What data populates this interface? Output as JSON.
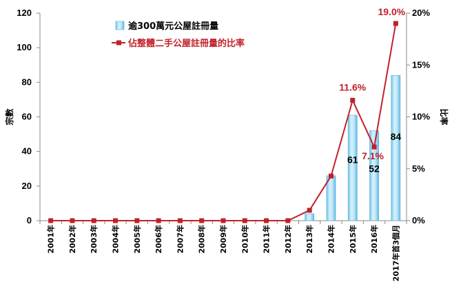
{
  "chart_data": {
    "type": "bar",
    "categories": [
      "2001年",
      "2002年",
      "2003年",
      "2004年",
      "2005年",
      "2006年",
      "2007年",
      "2008年",
      "2009年",
      "2010年",
      "2011年",
      "2012年",
      "2013年",
      "2014年",
      "2015年",
      "2016年",
      "2017年首3個月"
    ],
    "series": [
      {
        "name": "逾300萬元公屋註冊量",
        "type": "bar",
        "axis": "left",
        "values": [
          0,
          0,
          0,
          0,
          0,
          0,
          0,
          0,
          0,
          0,
          0,
          0,
          4,
          26,
          61,
          52,
          84
        ],
        "color": "#8fd3f0",
        "data_labels": {
          "14": "61",
          "15": "52",
          "16": "84"
        }
      },
      {
        "name": "佔整體二手公屋註冊量的比率",
        "type": "line",
        "axis": "right",
        "values": [
          0,
          0,
          0,
          0,
          0,
          0,
          0,
          0,
          0,
          0,
          0,
          0,
          1.0,
          4.3,
          11.6,
          7.1,
          19.0
        ],
        "color": "#c0202a",
        "data_labels": {
          "14": "11.6%",
          "15": "7.1%",
          "16": "19.0%"
        }
      }
    ],
    "ylabel": "宗數",
    "y2label": "比率",
    "ylim": [
      0,
      120
    ],
    "y2lim": [
      0,
      20
    ],
    "yticks": [
      "0",
      "20",
      "40",
      "60",
      "80",
      "100",
      "120"
    ],
    "y2ticks": [
      "0%",
      "5%",
      "10%",
      "15%",
      "20%"
    ],
    "legend": {
      "position": "top-left inside plot"
    },
    "grid": false
  }
}
